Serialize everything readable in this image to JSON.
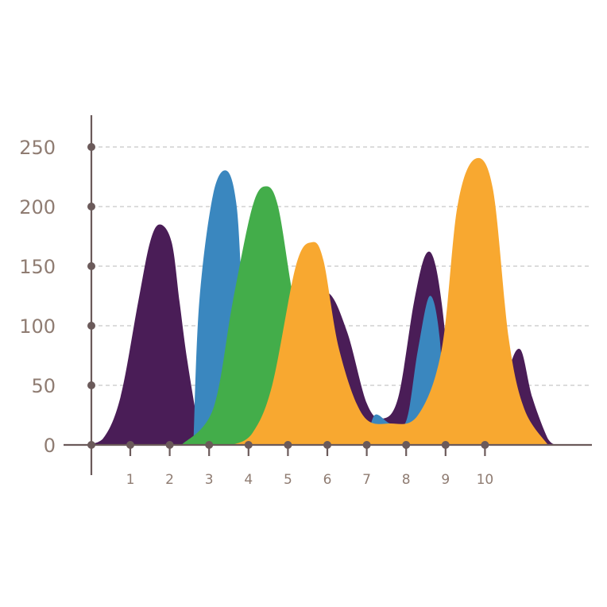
{
  "chart_data": {
    "type": "area",
    "x_ticks": [
      "1",
      "2",
      "3",
      "4",
      "5",
      "6",
      "7",
      "8",
      "9",
      "10"
    ],
    "y_ticks": [
      0,
      50,
      100,
      150,
      200,
      250
    ],
    "ylim": [
      0,
      250
    ],
    "grid": true,
    "series": [
      {
        "color": "#4a1d57",
        "points": [
          [
            -0.2,
            0
          ],
          [
            0.3,
            5
          ],
          [
            0.75,
            40
          ],
          [
            1.2,
            120
          ],
          [
            1.5,
            170
          ],
          [
            1.75,
            185
          ],
          [
            2.05,
            170
          ],
          [
            2.25,
            120
          ],
          [
            2.45,
            70
          ],
          [
            2.8,
            0
          ]
        ],
        "points2": [
          [
            4.3,
            0
          ],
          [
            5.4,
            110
          ],
          [
            6.0,
            128
          ],
          [
            6.5,
            95
          ],
          [
            7.0,
            35
          ],
          [
            7.4,
            22
          ],
          [
            7.8,
            40
          ],
          [
            8.2,
            120
          ],
          [
            8.5,
            160
          ],
          [
            8.75,
            150
          ],
          [
            9.0,
            90
          ],
          [
            9.2,
            0
          ]
        ],
        "points3": [
          [
            10.4,
            0
          ],
          [
            10.6,
            60
          ],
          [
            10.9,
            80
          ],
          [
            11.2,
            40
          ],
          [
            11.6,
            5
          ],
          [
            11.8,
            0
          ]
        ]
      },
      {
        "color": "#3a87bf",
        "points": [
          [
            2.6,
            0
          ],
          [
            2.75,
            120
          ],
          [
            3.1,
            210
          ],
          [
            3.45,
            230
          ],
          [
            3.7,
            200
          ],
          [
            3.85,
            120
          ],
          [
            4.0,
            60
          ],
          [
            4.3,
            0
          ]
        ],
        "points2": [
          [
            7.0,
            0
          ],
          [
            7.2,
            25
          ],
          [
            7.6,
            18
          ],
          [
            8.0,
            20
          ],
          [
            8.3,
            80
          ],
          [
            8.6,
            125
          ],
          [
            8.85,
            90
          ],
          [
            9.0,
            0
          ]
        ]
      },
      {
        "color": "#43ad4a",
        "points": [
          [
            2.3,
            0
          ],
          [
            3.1,
            30
          ],
          [
            3.6,
            120
          ],
          [
            4.1,
            200
          ],
          [
            4.45,
            217
          ],
          [
            4.75,
            200
          ],
          [
            5.1,
            130
          ],
          [
            5.5,
            60
          ],
          [
            6.2,
            0
          ]
        ]
      },
      {
        "color": "#f8a830",
        "points": [
          [
            3.6,
            0
          ],
          [
            4.1,
            10
          ],
          [
            4.6,
            50
          ],
          [
            5.2,
            150
          ],
          [
            5.6,
            170
          ],
          [
            5.9,
            155
          ],
          [
            6.3,
            80
          ],
          [
            6.9,
            25
          ],
          [
            7.6,
            18
          ],
          [
            8.3,
            25
          ],
          [
            8.9,
            80
          ],
          [
            9.3,
            200
          ],
          [
            9.75,
            240
          ],
          [
            10.2,
            215
          ],
          [
            10.6,
            90
          ],
          [
            11.0,
            30
          ],
          [
            11.6,
            0
          ]
        ]
      }
    ]
  }
}
